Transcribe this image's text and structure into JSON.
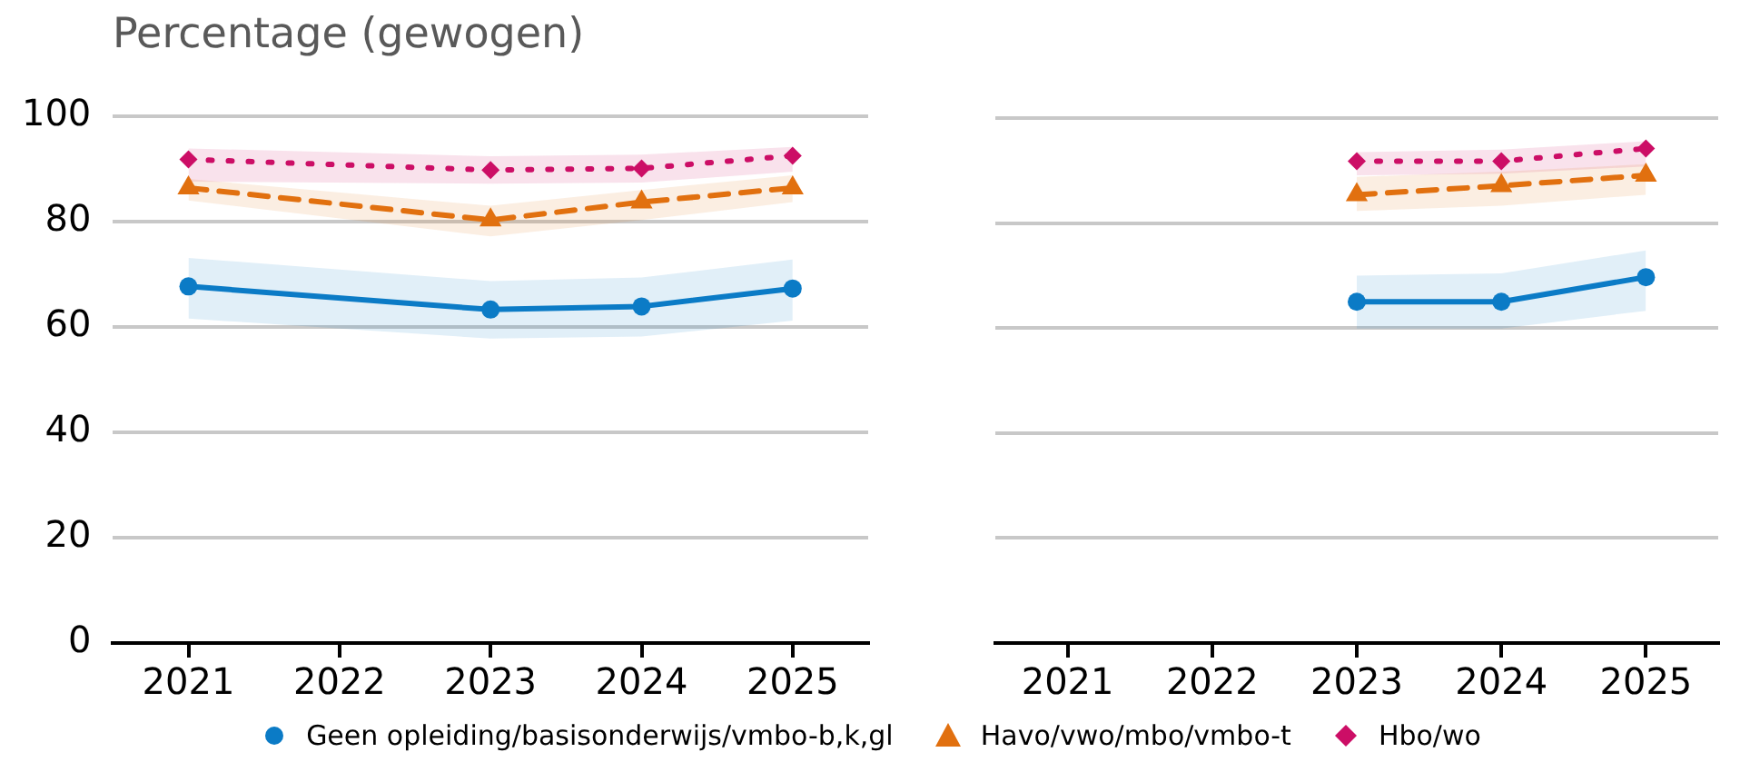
{
  "chart_data": [
    {
      "type": "line",
      "ylabel": "Percentage (gewogen)",
      "categories": [
        "2021",
        "2022",
        "2023",
        "2024",
        "2025"
      ],
      "ylim": [
        0,
        100
      ],
      "yticks": [
        0,
        20,
        40,
        60,
        80,
        100
      ],
      "grid": "y",
      "legend": "bottom",
      "series": [
        {
          "name": "Geen opleiding/basisonderwijs/vmbo-b,k,gl",
          "color": "#0b7bc6",
          "marker": "circle",
          "line_style": "solid",
          "values": [
            67.7,
            null,
            63.3,
            63.9,
            67.3
          ],
          "lower": [
            61.6,
            null,
            57.8,
            58.2,
            61.2
          ],
          "upper": [
            73.1,
            null,
            68.7,
            69.4,
            72.8
          ]
        },
        {
          "name": "Havo/vwo/mbo/vmbo-t",
          "color": "#e1700f",
          "marker": "triangle",
          "line_style": "dashed",
          "values": [
            86.4,
            null,
            80.3,
            83.7,
            86.4
          ],
          "lower": [
            84,
            null,
            77.2,
            80.3,
            83.7
          ],
          "upper": [
            88.1,
            null,
            83,
            86,
            88.8
          ]
        },
        {
          "name": "Hbo/wo",
          "color": "#cc0e66",
          "marker": "diamond",
          "line_style": "dotted",
          "values": [
            91.8,
            null,
            89.8,
            90.1,
            92.5
          ],
          "lower": [
            87.6,
            null,
            87.2,
            87.4,
            89.5
          ],
          "upper": [
            93.9,
            null,
            92.4,
            92.7,
            94.2
          ]
        }
      ]
    },
    {
      "type": "line",
      "categories": [
        "2021",
        "2022",
        "2023",
        "2024",
        "2025"
      ],
      "ylim": [
        0,
        100
      ],
      "yticks": [
        0,
        20,
        40,
        60,
        80,
        100
      ],
      "grid": "y",
      "tick_labels": "x",
      "series": [
        {
          "color": "#0b7bc6",
          "marker": "circle",
          "line_style": "solid",
          "values": [
            null,
            null,
            65,
            65,
            69.7
          ],
          "lower": [
            null,
            null,
            59.9,
            59.9,
            63.3
          ],
          "upper": [
            null,
            null,
            70,
            70.4,
            74.8
          ]
        },
        {
          "color": "#e1700f",
          "marker": "triangle",
          "line_style": "dashed",
          "values": [
            null,
            null,
            85.4,
            87.1,
            89.1
          ],
          "lower": [
            null,
            null,
            82.3,
            83.3,
            85.4
          ],
          "upper": [
            null,
            null,
            88.8,
            89.8,
            91.2
          ]
        },
        {
          "color": "#cc0e66",
          "marker": "diamond",
          "line_style": "dotted",
          "values": [
            null,
            null,
            91.8,
            91.8,
            94.2
          ],
          "lower": [
            null,
            null,
            89.1,
            89.4,
            90.8
          ],
          "upper": [
            null,
            null,
            93.5,
            94,
            95.6
          ]
        }
      ]
    }
  ]
}
